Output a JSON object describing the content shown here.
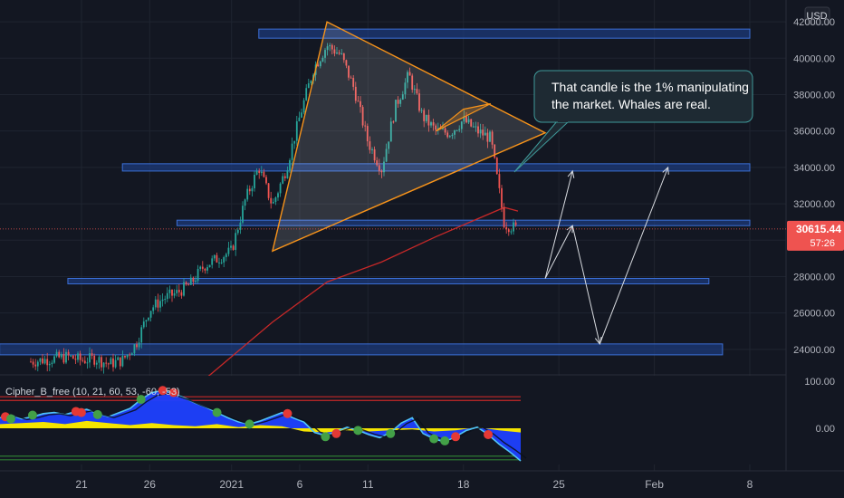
{
  "currency": "USD",
  "price_tag": {
    "price": "30615.44",
    "countdown": "57:26",
    "value": 30615.44
  },
  "annotation": {
    "lines": [
      "That candle is the 1% manipulating",
      "the market. Whales are real."
    ]
  },
  "indicator": {
    "label": "Cipher_B_free (10, 21, 60, 53, -60, -53)",
    "y_axis_ticks": [
      {
        "label": "100.00",
        "value": 100
      },
      {
        "label": "0.00",
        "value": 0
      }
    ],
    "levels": [
      60,
      53,
      -53,
      -60
    ],
    "wave": [
      [
        0,
        20
      ],
      [
        2,
        25
      ],
      [
        4,
        18
      ],
      [
        6,
        22
      ],
      [
        8,
        28
      ],
      [
        10,
        30
      ],
      [
        12,
        26
      ],
      [
        14,
        32
      ],
      [
        16,
        36
      ],
      [
        18,
        28
      ],
      [
        20,
        22
      ],
      [
        22,
        30
      ],
      [
        24,
        38
      ],
      [
        26,
        55
      ],
      [
        28,
        68
      ],
      [
        30,
        72
      ],
      [
        32,
        66
      ],
      [
        34,
        58
      ],
      [
        36,
        48
      ],
      [
        38,
        40
      ],
      [
        40,
        30
      ],
      [
        42,
        20
      ],
      [
        44,
        12
      ],
      [
        46,
        8
      ],
      [
        48,
        14
      ],
      [
        50,
        22
      ],
      [
        52,
        30
      ],
      [
        54,
        20
      ],
      [
        56,
        12
      ],
      [
        58,
        -8
      ],
      [
        60,
        -14
      ],
      [
        62,
        -6
      ],
      [
        64,
        2
      ],
      [
        66,
        -4
      ],
      [
        68,
        -12
      ],
      [
        70,
        -18
      ],
      [
        72,
        -8
      ],
      [
        74,
        10
      ],
      [
        76,
        20
      ],
      [
        78,
        -10
      ],
      [
        80,
        -20
      ],
      [
        82,
        -26
      ],
      [
        84,
        -16
      ],
      [
        86,
        -4
      ],
      [
        88,
        2
      ],
      [
        90,
        -12
      ],
      [
        92,
        -30
      ],
      [
        94,
        -45
      ],
      [
        96,
        -62
      ]
    ],
    "money_flow": [
      [
        0,
        8
      ],
      [
        4,
        10
      ],
      [
        8,
        12
      ],
      [
        12,
        8
      ],
      [
        16,
        14
      ],
      [
        20,
        10
      ],
      [
        24,
        6
      ],
      [
        28,
        10
      ],
      [
        32,
        6
      ],
      [
        36,
        4
      ],
      [
        40,
        8
      ],
      [
        44,
        2
      ],
      [
        48,
        6
      ],
      [
        52,
        4
      ],
      [
        56,
        -6
      ],
      [
        60,
        -8
      ],
      [
        64,
        -4
      ],
      [
        68,
        -6
      ],
      [
        72,
        -4
      ],
      [
        76,
        -2
      ],
      [
        80,
        -6
      ],
      [
        84,
        -4
      ],
      [
        88,
        2
      ],
      [
        92,
        -4
      ],
      [
        96,
        -8
      ]
    ],
    "dots": [
      {
        "x": 1,
        "y": 22,
        "color": "#e53935"
      },
      {
        "x": 2,
        "y": 18,
        "color": "#43a047"
      },
      {
        "x": 6,
        "y": 25,
        "color": "#43a047"
      },
      {
        "x": 14,
        "y": 32,
        "color": "#e53935"
      },
      {
        "x": 15,
        "y": 30,
        "color": "#e53935"
      },
      {
        "x": 18,
        "y": 26,
        "color": "#43a047"
      },
      {
        "x": 26,
        "y": 55,
        "color": "#43a047"
      },
      {
        "x": 30,
        "y": 72,
        "color": "#e53935"
      },
      {
        "x": 32,
        "y": 68,
        "color": "#e53935"
      },
      {
        "x": 40,
        "y": 30,
        "color": "#43a047"
      },
      {
        "x": 46,
        "y": 8,
        "color": "#43a047"
      },
      {
        "x": 53,
        "y": 28,
        "color": "#e53935"
      },
      {
        "x": 60,
        "y": -16,
        "color": "#43a047"
      },
      {
        "x": 62,
        "y": -10,
        "color": "#e53935"
      },
      {
        "x": 66,
        "y": -4,
        "color": "#43a047"
      },
      {
        "x": 72,
        "y": -10,
        "color": "#43a047"
      },
      {
        "x": 80,
        "y": -20,
        "color": "#43a047"
      },
      {
        "x": 82,
        "y": -24,
        "color": "#43a047"
      },
      {
        "x": 84,
        "y": -16,
        "color": "#e53935"
      },
      {
        "x": 90,
        "y": -12,
        "color": "#e53935"
      }
    ]
  },
  "chart_data": {
    "type": "line",
    "ylabel": "",
    "ylim": [
      22700,
      42800
    ],
    "y_ticks": [
      {
        "label": "24000.00",
        "value": 24000
      },
      {
        "label": "26000.00",
        "value": 26000
      },
      {
        "label": "28000.00",
        "value": 28000
      },
      {
        "label": "30000.00",
        "value": 30000
      },
      {
        "label": "32000.00",
        "value": 32000
      },
      {
        "label": "34000.00",
        "value": 34000
      },
      {
        "label": "36000.00",
        "value": 36000
      },
      {
        "label": "38000.00",
        "value": 38000
      },
      {
        "label": "40000.00",
        "value": 40000
      },
      {
        "label": "42000.00",
        "value": 42000
      }
    ],
    "x_ticks": [
      {
        "label": "21",
        "date": "2020-12-21"
      },
      {
        "label": "26",
        "date": "2020-12-26"
      },
      {
        "label": "2021",
        "date": "2021-01-01"
      },
      {
        "label": "6",
        "date": "2021-01-06"
      },
      {
        "label": "11",
        "date": "2021-01-11"
      },
      {
        "label": "18",
        "date": "2021-01-18"
      },
      {
        "label": "25",
        "date": "2021-01-25"
      },
      {
        "label": "Feb",
        "date": "2021-02-01"
      },
      {
        "label": "8",
        "date": "2021-02-08"
      }
    ],
    "price_path": [
      [
        "2020-12-16",
        23200
      ],
      [
        "2020-12-17",
        23300
      ],
      [
        "2020-12-18",
        23400
      ],
      [
        "2020-12-19",
        23500
      ],
      [
        "2020-12-20",
        23600
      ],
      [
        "2020-12-21",
        23400
      ],
      [
        "2020-12-22",
        23500
      ],
      [
        "2020-12-23",
        23200
      ],
      [
        "2020-12-24",
        23400
      ],
      [
        "2020-12-25",
        24300
      ],
      [
        "2020-12-26",
        26200
      ],
      [
        "2020-12-27",
        26800
      ],
      [
        "2020-12-28",
        27100
      ],
      [
        "2020-12-29",
        27600
      ],
      [
        "2020-12-30",
        28600
      ],
      [
        "2020-12-31",
        29000
      ],
      [
        "2021-01-01",
        29400
      ],
      [
        "2021-01-02",
        32200
      ],
      [
        "2021-01-03",
        34000
      ],
      [
        "2021-01-04",
        31900
      ],
      [
        "2021-01-05",
        33900
      ],
      [
        "2021-01-06",
        36800
      ],
      [
        "2021-01-07",
        39400
      ],
      [
        "2021-01-08",
        40700
      ],
      [
        "2021-01-09",
        40200
      ],
      [
        "2021-01-10",
        38300
      ],
      [
        "2021-01-11",
        35400
      ],
      [
        "2021-01-12",
        33900
      ],
      [
        "2021-01-13",
        37300
      ],
      [
        "2021-01-14",
        39100
      ],
      [
        "2021-01-15",
        36800
      ],
      [
        "2021-01-16",
        36000
      ],
      [
        "2021-01-17",
        35900
      ],
      [
        "2021-01-18",
        36600
      ],
      [
        "2021-01-19",
        36000
      ],
      [
        "2021-01-20",
        35600
      ],
      [
        "2021-01-21",
        30900
      ],
      [
        "2021-01-22",
        30600
      ]
    ],
    "moving_average": [
      [
        "2020-12-23",
        19800
      ],
      [
        "2020-12-29",
        21700
      ],
      [
        "2021-01-04",
        25500
      ],
      [
        "2021-01-08",
        27700
      ],
      [
        "2021-01-12",
        28800
      ],
      [
        "2021-01-16",
        30200
      ],
      [
        "2021-01-21",
        31800
      ],
      [
        "2021-01-22",
        31600
      ]
    ],
    "zones": [
      {
        "from": "2021-01-03",
        "to": "2021-02-08",
        "low": 41100,
        "high": 41600
      },
      {
        "from": "2020-12-24",
        "to": "2021-02-08",
        "low": 33800,
        "high": 34200
      },
      {
        "from": "2020-12-28",
        "to": "2021-02-08",
        "low": 30800,
        "high": 31100
      },
      {
        "from": "2020-12-20",
        "to": "2021-02-05",
        "low": 27600,
        "high": 27900
      },
      {
        "from": "2020-12-15",
        "to": "2021-02-06",
        "low": 23700,
        "high": 24300
      }
    ],
    "triangle": [
      [
        "2021-01-04",
        29400
      ],
      [
        "2021-01-08",
        42000
      ],
      [
        "2021-01-24",
        35900
      ]
    ],
    "pennant": [
      [
        "2021-01-16",
        36000
      ],
      [
        "2021-01-18",
        37200
      ],
      [
        "2021-01-20",
        37500
      ]
    ],
    "arrows": [
      {
        "from": [
          "2021-01-24",
          27900
        ],
        "to": [
          "2021-01-26",
          33800
        ]
      },
      {
        "from": [
          "2021-01-24",
          27900
        ],
        "to": [
          "2021-01-26",
          30800
        ]
      },
      {
        "from": [
          "2021-01-26",
          30800
        ],
        "to": [
          "2021-01-28",
          24300
        ]
      },
      {
        "from": [
          "2021-01-28",
          24300
        ],
        "to": [
          "2021-02-02",
          34000
        ]
      }
    ]
  }
}
